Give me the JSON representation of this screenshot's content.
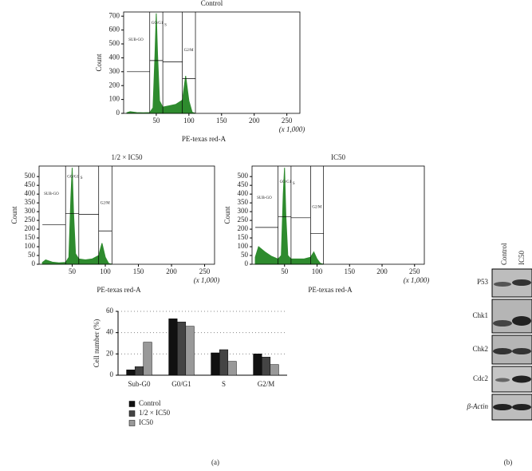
{
  "chart_data": [
    {
      "type": "area",
      "title": "Control",
      "xlabel": "PE-texas red-A",
      "ylabel": "Count",
      "xunit": "(x 1,000)",
      "color": "#2e8b2e",
      "x": [
        5,
        10,
        20,
        30,
        40,
        45,
        48,
        50,
        52,
        55,
        60,
        70,
        80,
        90,
        95,
        100,
        105,
        110
      ],
      "values": [
        5,
        12,
        6,
        4,
        6,
        40,
        420,
        720,
        420,
        90,
        45,
        55,
        65,
        95,
        270,
        90,
        8,
        0
      ],
      "xlim": [
        0,
        270
      ],
      "ylim": [
        0,
        730
      ],
      "xticks": [
        50,
        100,
        150,
        200,
        250
      ],
      "yticks": [
        0,
        100,
        200,
        300,
        400,
        500,
        600,
        700
      ],
      "gates": [
        {
          "label": "SUB-GO",
          "x0": 5,
          "x1": 40,
          "y": 300
        },
        {
          "label": "GO/G1",
          "x0": 40,
          "x1": 60,
          "y": 380
        },
        {
          "label": "S",
          "x0": 60,
          "x1": 90,
          "y": 370
        },
        {
          "label": "G2/M",
          "x0": 90,
          "x1": 110,
          "y": 250
        }
      ]
    },
    {
      "type": "area",
      "title": "1/2 × IC50",
      "xlabel": "PE-texas red-A",
      "ylabel": "Count",
      "xunit": "(x 1,000)",
      "color": "#2e8b2e",
      "x": [
        5,
        10,
        20,
        30,
        40,
        45,
        48,
        50,
        52,
        55,
        60,
        70,
        80,
        90,
        95,
        100,
        105,
        110
      ],
      "values": [
        10,
        25,
        12,
        8,
        10,
        40,
        380,
        550,
        300,
        60,
        30,
        25,
        30,
        50,
        120,
        40,
        5,
        0
      ],
      "xlim": [
        0,
        265
      ],
      "ylim": [
        0,
        560
      ],
      "xticks": [
        50,
        100,
        150,
        200,
        250
      ],
      "yticks": [
        0,
        50,
        100,
        150,
        200,
        250,
        300,
        350,
        400,
        450,
        500
      ],
      "gates": [
        {
          "label": "SUB-GO",
          "x0": 5,
          "x1": 40,
          "y": 225
        },
        {
          "label": "GO/G1",
          "x0": 40,
          "x1": 60,
          "y": 290
        },
        {
          "label": "S",
          "x0": 60,
          "x1": 90,
          "y": 285
        },
        {
          "label": "G2/M",
          "x0": 90,
          "x1": 110,
          "y": 190
        }
      ]
    },
    {
      "type": "area",
      "title": "IC50",
      "xlabel": "PE-texas red-A",
      "ylabel": "Count",
      "xunit": "(x 1,000)",
      "color": "#2e8b2e",
      "x": [
        5,
        10,
        20,
        30,
        40,
        45,
        48,
        50,
        52,
        55,
        60,
        70,
        80,
        90,
        95,
        100,
        105,
        110
      ],
      "values": [
        40,
        100,
        70,
        45,
        30,
        50,
        400,
        550,
        280,
        50,
        30,
        30,
        30,
        40,
        70,
        30,
        5,
        0
      ],
      "xlim": [
        0,
        265
      ],
      "ylim": [
        0,
        560
      ],
      "xticks": [
        50,
        100,
        150,
        200,
        250
      ],
      "yticks": [
        0,
        50,
        100,
        150,
        200,
        250,
        300,
        350,
        400,
        450,
        500
      ],
      "gates": [
        {
          "label": "SUB-GO",
          "x0": 5,
          "x1": 40,
          "y": 210
        },
        {
          "label": "GO/G1",
          "x0": 40,
          "x1": 60,
          "y": 270
        },
        {
          "label": "S",
          "x0": 60,
          "x1": 90,
          "y": 265
        },
        {
          "label": "G2/M",
          "x0": 90,
          "x1": 110,
          "y": 175
        }
      ]
    },
    {
      "type": "bar",
      "ylabel": "Cell number (%)",
      "categories": [
        "Sub-G0",
        "G0/G1",
        "S",
        "G2/M"
      ],
      "series": [
        {
          "name": "Control",
          "color": "#111111",
          "values": [
            5,
            53,
            21,
            20
          ]
        },
        {
          "name": "1/2 × IC50",
          "color": "#444444",
          "values": [
            8,
            50,
            24,
            17
          ]
        },
        {
          "name": "IC50",
          "color": "#999999",
          "values": [
            31,
            46,
            13,
            10
          ]
        }
      ],
      "ylim": [
        0,
        60
      ],
      "yticks": [
        0,
        20,
        40,
        60
      ],
      "grid": true
    }
  ],
  "blot": {
    "columns": [
      "Control",
      "IC50"
    ],
    "rows": [
      "P53",
      "Chk1",
      "Chk2",
      "Cdc2",
      "β-Actin"
    ]
  },
  "panel_labels": [
    "(a)",
    "(b)"
  ]
}
